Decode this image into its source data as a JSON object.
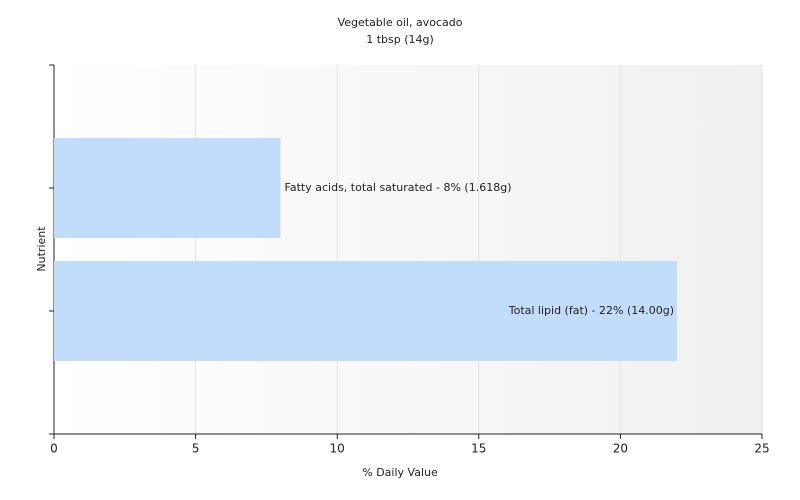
{
  "chart_data": {
    "type": "bar",
    "orientation": "horizontal",
    "title": "Vegetable oil, avocado",
    "subtitle": "1 tbsp (14g)",
    "categories": [
      "Fatty acids, total saturated - 8% (1.618g)",
      "Total lipid (fat) - 22% (14.00g)"
    ],
    "values": [
      8,
      22
    ],
    "color": "#c2dcfc",
    "xlabel": "% Daily Value",
    "ylabel": "Nutrient",
    "xlim": [
      0,
      25
    ],
    "xticks": [
      0,
      5,
      10,
      15,
      20,
      25
    ],
    "grid": true
  }
}
